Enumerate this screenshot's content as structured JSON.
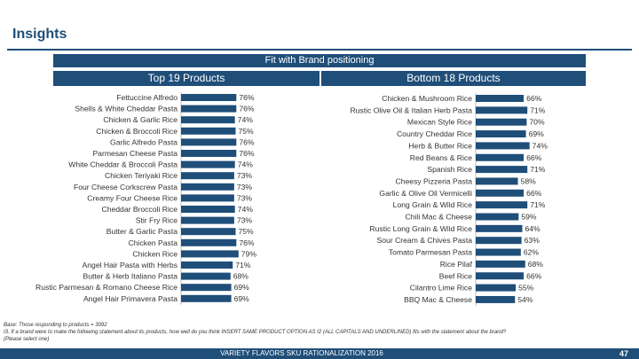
{
  "header": {
    "title": "Insights"
  },
  "banner": "Fit with Brand positioning",
  "colors": {
    "navy": "#1f4e79",
    "bar": "#1f4e79"
  },
  "base": {
    "line1": "Base: Those responding to products = 3092",
    "line2": "I3. If a brand were to make the following statement about its products, how well do you think INSERT SAME PRODUCT OPTION AS I2 (ALL CAPITALS AND UNDERLINED) fits with the statement about the brand?",
    "line3": "(Please select one)"
  },
  "footer": {
    "text": "VARIETY FLAVORS SKU RATIONALIZATION 2016",
    "page": "47"
  },
  "chart_data": [
    {
      "type": "bar",
      "orientation": "horizontal",
      "title": "Top 19 Products",
      "categories": [
        "Fettuccine Alfredo",
        "Shells & White Cheddar Pasta",
        "Chicken & Garlic Rice",
        "Chicken & Broccoli Rice",
        "Garlic Alfredo Pasta",
        "Parmesan Cheese Pasta",
        "White Cheddar & Broccoli Pasta",
        "Chicken Teriyaki Rice",
        "Four Cheese Corkscrew Pasta",
        "Creamy Four Cheese Rice",
        "Cheddar Broccoli Rice",
        "Stir Fry Rice",
        "Butter & Garlic Pasta",
        "Chicken Pasta",
        "Chicken Rice",
        "Angel Hair Pasta with Herbs",
        "Butter & Herb Italiano Pasta",
        "Rustic Parmesan & Romano Cheese Rice",
        "Angel Hair Primavera Pasta"
      ],
      "values": [
        76,
        76,
        74,
        75,
        76,
        76,
        74,
        73,
        73,
        73,
        74,
        73,
        75,
        76,
        79,
        71,
        68,
        69,
        69
      ],
      "value_labels": [
        "76%",
        "76%",
        "74%",
        "75%",
        "76%",
        "76%",
        "74%",
        "73%",
        "73%",
        "73%",
        "74%",
        "73%",
        "75%",
        "76%",
        "79%",
        "71%",
        "68%",
        "69%",
        "69%"
      ],
      "xlim": [
        0,
        100
      ]
    },
    {
      "type": "bar",
      "orientation": "horizontal",
      "title": "Bottom 18 Products",
      "categories": [
        "Chicken & Mushroom Rice",
        "Rustic Olive Oil & Italian Herb Pasta",
        "Mexican Style Rice",
        "Country Cheddar Rice",
        "Herb & Butter Rice",
        "Red Beans & Rice",
        "Spanish Rice",
        "Cheesy Pizzeria Pasta",
        "Garlic & Olive Oil Vermicelli",
        "Long Grain & Wild Rice",
        "Chili Mac & Cheese",
        "Rustic Long Grain & Wild Rice",
        "Sour Cream & Chives Pasta",
        "Tomato Parmesan Pasta",
        "Rice Pilaf",
        "Beef Rice",
        "Cilantro Lime Rice",
        "BBQ Mac & Cheese"
      ],
      "values": [
        66,
        71,
        70,
        69,
        74,
        66,
        71,
        58,
        66,
        71,
        59,
        64,
        63,
        62,
        68,
        66,
        55,
        54
      ],
      "value_labels": [
        "66%",
        "71%",
        "70%",
        "69%",
        "74%",
        "66%",
        "71%",
        "58%",
        "66%",
        "71%",
        "59%",
        "64%",
        "63%",
        "62%",
        "68%",
        "66%",
        "55%",
        "54%"
      ],
      "xlim": [
        0,
        100
      ]
    }
  ]
}
